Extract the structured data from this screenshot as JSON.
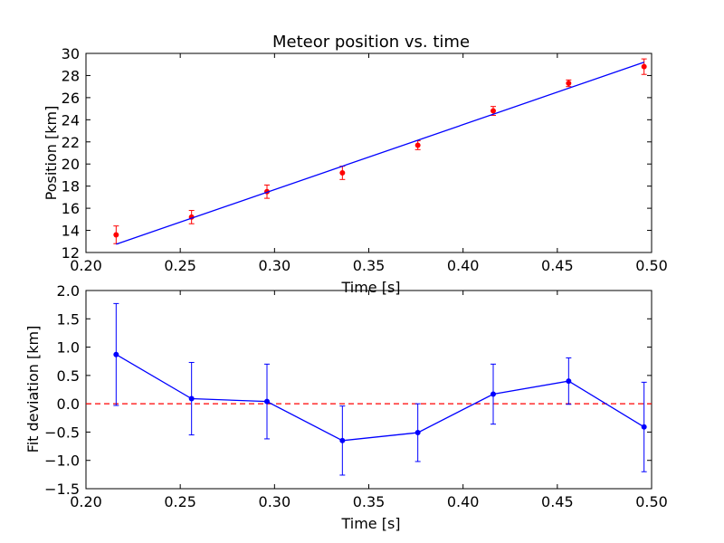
{
  "chart_data": [
    {
      "type": "scatter",
      "title": "Meteor position vs. time",
      "xlabel": "Time [s]",
      "ylabel": "Position [km]",
      "xlim": [
        0.2,
        0.5
      ],
      "ylim": [
        12,
        30
      ],
      "xticks": [
        "0.20",
        "0.25",
        "0.30",
        "0.35",
        "0.40",
        "0.45",
        "0.50"
      ],
      "yticks": [
        "12",
        "14",
        "16",
        "18",
        "20",
        "22",
        "24",
        "26",
        "28",
        "30"
      ],
      "grid": false,
      "series": [
        {
          "kind": "errorbar",
          "color": "#ff0000",
          "x": [
            0.216,
            0.256,
            0.296,
            0.336,
            0.376,
            0.416,
            0.456,
            0.496
          ],
          "y": [
            13.6,
            15.2,
            17.5,
            19.2,
            21.7,
            24.8,
            27.3,
            28.8
          ],
          "yerr": [
            0.8,
            0.6,
            0.6,
            0.6,
            0.4,
            0.4,
            0.3,
            0.7
          ]
        },
        {
          "kind": "fit-line",
          "color": "#0000ff",
          "x": [
            0.216,
            0.496
          ],
          "y": [
            12.75,
            29.2
          ]
        }
      ]
    },
    {
      "type": "line",
      "title": "",
      "xlabel": "Time [s]",
      "ylabel": "Fit deviation [km]",
      "xlim": [
        0.2,
        0.5
      ],
      "ylim": [
        -1.5,
        2.0
      ],
      "xticks": [
        "0.20",
        "0.25",
        "0.30",
        "0.35",
        "0.40",
        "0.45",
        "0.50"
      ],
      "yticks": [
        "−1.5",
        "−1.0",
        "−0.5",
        "0.0",
        "0.5",
        "1.0",
        "1.5",
        "2.0"
      ],
      "grid": false,
      "reference_line": {
        "y": 0.0,
        "color": "#ff0000",
        "style": "dashed"
      },
      "series": [
        {
          "kind": "errorbar-line",
          "color": "#0000ff",
          "x": [
            0.216,
            0.256,
            0.296,
            0.336,
            0.376,
            0.416,
            0.456,
            0.496
          ],
          "y": [
            0.87,
            0.09,
            0.04,
            -0.65,
            -0.51,
            0.17,
            0.4,
            -0.41
          ],
          "yerr": [
            0.9,
            0.64,
            0.66,
            0.61,
            0.51,
            0.53,
            0.41,
            0.79
          ]
        }
      ]
    }
  ]
}
